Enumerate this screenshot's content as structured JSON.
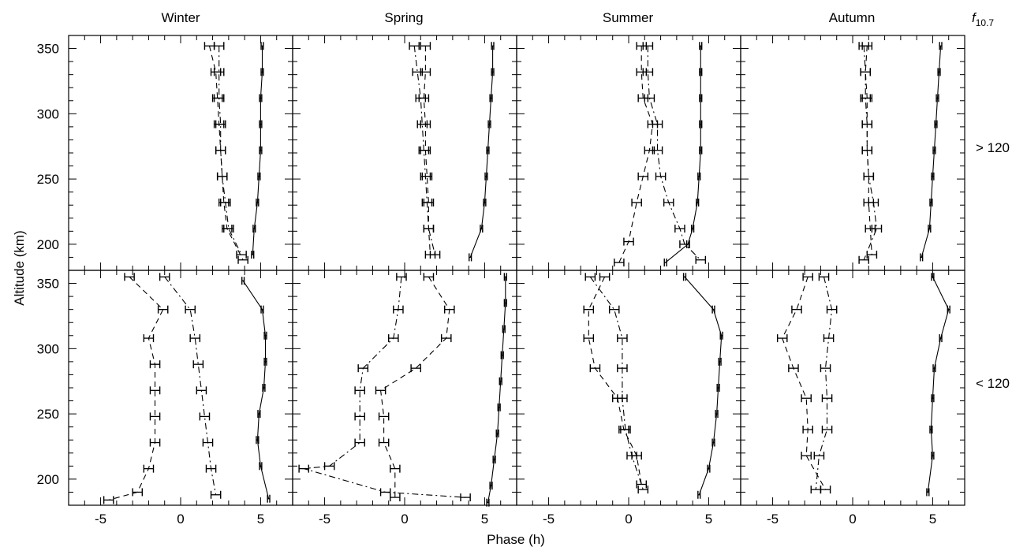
{
  "chart_data": {
    "type": "line",
    "seasons": [
      "Winter",
      "Spring",
      "Summer",
      "Autumn"
    ],
    "row_header": "f10.7",
    "row_labels": [
      "> 120",
      "< 120"
    ],
    "xlabel": "Phase (h)",
    "ylabel": "Altitude (km)",
    "xlim": [
      -7,
      7
    ],
    "ylim": [
      180,
      360
    ],
    "x_ticks": [
      -5,
      0,
      5
    ],
    "y_ticks": [
      200,
      250,
      300,
      350
    ],
    "line_styles": [
      "solid",
      "dashed",
      "dashdot"
    ],
    "panels": [
      {
        "row": 0,
        "col": 0,
        "season": "Winter",
        "f107": "> 120",
        "series": [
          {
            "style": "solid",
            "points": [
              [
                5.1,
                352
              ],
              [
                5.1,
                332
              ],
              [
                5.0,
                312
              ],
              [
                5.0,
                292
              ],
              [
                5.0,
                272
              ],
              [
                4.9,
                252
              ],
              [
                4.8,
                232
              ],
              [
                4.6,
                212
              ],
              [
                4.5,
                192
              ]
            ]
          },
          {
            "style": "dashed",
            "points": [
              [
                1.8,
                352
              ],
              [
                2.2,
                332
              ],
              [
                2.3,
                312
              ],
              [
                2.4,
                292
              ],
              [
                2.5,
                272
              ],
              [
                2.6,
                252
              ],
              [
                2.7,
                232
              ],
              [
                2.9,
                212
              ],
              [
                3.9,
                188
              ]
            ]
          },
          {
            "style": "dashdot",
            "points": [
              [
                2.4,
                352
              ],
              [
                2.4,
                332
              ],
              [
                2.4,
                312
              ],
              [
                2.5,
                292
              ],
              [
                2.5,
                272
              ],
              [
                2.6,
                252
              ],
              [
                2.8,
                232
              ],
              [
                3.0,
                212
              ],
              [
                3.8,
                192
              ]
            ]
          }
        ]
      },
      {
        "row": 0,
        "col": 1,
        "season": "Spring",
        "f107": "> 120",
        "series": [
          {
            "style": "solid",
            "points": [
              [
                5.5,
                352
              ],
              [
                5.5,
                332
              ],
              [
                5.4,
                312
              ],
              [
                5.3,
                292
              ],
              [
                5.2,
                272
              ],
              [
                5.1,
                252
              ],
              [
                5.0,
                232
              ],
              [
                4.8,
                212
              ],
              [
                4.1,
                190
              ]
            ]
          },
          {
            "style": "dashed",
            "points": [
              [
                1.3,
                352
              ],
              [
                1.3,
                332
              ],
              [
                1.2,
                312
              ],
              [
                1.3,
                292
              ],
              [
                1.3,
                272
              ],
              [
                1.4,
                252
              ],
              [
                1.5,
                232
              ],
              [
                1.5,
                212
              ],
              [
                1.6,
                192
              ]
            ]
          },
          {
            "style": "dashdot",
            "points": [
              [
                0.6,
                352
              ],
              [
                0.8,
                332
              ],
              [
                1.0,
                312
              ],
              [
                1.1,
                292
              ],
              [
                1.2,
                272
              ],
              [
                1.3,
                252
              ],
              [
                1.4,
                232
              ],
              [
                1.5,
                212
              ],
              [
                1.9,
                192
              ]
            ]
          }
        ]
      },
      {
        "row": 0,
        "col": 2,
        "season": "Summer",
        "f107": "> 120",
        "series": [
          {
            "style": "solid",
            "points": [
              [
                4.5,
                352
              ],
              [
                4.5,
                332
              ],
              [
                4.5,
                312
              ],
              [
                4.5,
                292
              ],
              [
                4.5,
                272
              ],
              [
                4.4,
                252
              ],
              [
                4.3,
                232
              ],
              [
                4.0,
                212
              ],
              [
                3.7,
                200
              ],
              [
                2.3,
                186
              ]
            ]
          },
          {
            "style": "dashed",
            "points": [
              [
                0.8,
                352
              ],
              [
                0.8,
                332
              ],
              [
                0.9,
                312
              ],
              [
                1.5,
                292
              ],
              [
                1.3,
                272
              ],
              [
                0.9,
                252
              ],
              [
                0.5,
                232
              ],
              [
                0.0,
                202
              ],
              [
                -0.6,
                186
              ]
            ]
          },
          {
            "style": "dashdot",
            "points": [
              [
                1.2,
                352
              ],
              [
                1.2,
                332
              ],
              [
                1.3,
                312
              ],
              [
                1.8,
                292
              ],
              [
                1.8,
                272
              ],
              [
                2.0,
                252
              ],
              [
                2.5,
                232
              ],
              [
                3.2,
                212
              ],
              [
                3.5,
                200
              ],
              [
                4.5,
                188
              ]
            ]
          }
        ]
      },
      {
        "row": 0,
        "col": 3,
        "season": "Autumn",
        "f107": "> 120",
        "series": [
          {
            "style": "solid",
            "points": [
              [
                5.5,
                352
              ],
              [
                5.4,
                332
              ],
              [
                5.3,
                312
              ],
              [
                5.2,
                292
              ],
              [
                5.1,
                272
              ],
              [
                5.0,
                252
              ],
              [
                4.9,
                232
              ],
              [
                4.8,
                212
              ],
              [
                4.3,
                190
              ]
            ]
          },
          {
            "style": "dashed",
            "points": [
              [
                0.9,
                352
              ],
              [
                0.8,
                332
              ],
              [
                0.9,
                312
              ],
              [
                0.9,
                292
              ],
              [
                0.9,
                272
              ],
              [
                1.0,
                252
              ],
              [
                1.0,
                232
              ],
              [
                1.1,
                212
              ],
              [
                1.2,
                192
              ]
            ]
          },
          {
            "style": "dashdot",
            "points": [
              [
                0.7,
                352
              ],
              [
                0.8,
                332
              ],
              [
                0.8,
                312
              ],
              [
                0.9,
                292
              ],
              [
                0.9,
                272
              ],
              [
                1.0,
                252
              ],
              [
                1.3,
                232
              ],
              [
                1.5,
                212
              ],
              [
                0.7,
                188
              ]
            ]
          }
        ]
      },
      {
        "row": 1,
        "col": 0,
        "season": "Winter",
        "f107": "< 120",
        "series": [
          {
            "style": "solid",
            "points": [
              [
                3.9,
                352
              ],
              [
                5.1,
                330
              ],
              [
                5.3,
                310
              ],
              [
                5.3,
                290
              ],
              [
                5.2,
                270
              ],
              [
                4.9,
                250
              ],
              [
                4.8,
                230
              ],
              [
                5.0,
                210
              ],
              [
                5.5,
                185
              ]
            ]
          },
          {
            "style": "dashed",
            "points": [
              [
                -3.2,
                355
              ],
              [
                -1.1,
                330
              ],
              [
                -2.0,
                308
              ],
              [
                -1.6,
                288
              ],
              [
                -1.6,
                268
              ],
              [
                -1.6,
                248
              ],
              [
                -1.6,
                228
              ],
              [
                -2.0,
                208
              ],
              [
                -2.7,
                190
              ],
              [
                -4.5,
                184
              ]
            ]
          },
          {
            "style": "dashdot",
            "points": [
              [
                -1.0,
                355
              ],
              [
                0.6,
                330
              ],
              [
                0.9,
                308
              ],
              [
                1.1,
                288
              ],
              [
                1.3,
                268
              ],
              [
                1.5,
                248
              ],
              [
                1.7,
                228
              ],
              [
                1.9,
                208
              ],
              [
                2.2,
                188
              ]
            ]
          }
        ]
      },
      {
        "row": 1,
        "col": 1,
        "season": "Spring",
        "f107": "< 120",
        "series": [
          {
            "style": "solid",
            "points": [
              [
                6.3,
                355
              ],
              [
                6.3,
                335
              ],
              [
                6.2,
                315
              ],
              [
                6.1,
                295
              ],
              [
                6.0,
                275
              ],
              [
                5.9,
                255
              ],
              [
                5.8,
                235
              ],
              [
                5.6,
                215
              ],
              [
                5.4,
                195
              ],
              [
                5.2,
                182
              ]
            ]
          },
          {
            "style": "dashed",
            "points": [
              [
                1.5,
                355
              ],
              [
                2.8,
                330
              ],
              [
                2.6,
                308
              ],
              [
                0.7,
                285
              ],
              [
                -1.5,
                268
              ],
              [
                -1.3,
                248
              ],
              [
                -1.3,
                228
              ],
              [
                -0.6,
                208
              ],
              [
                -0.6,
                186
              ]
            ]
          },
          {
            "style": "dashdot",
            "points": [
              [
                -0.2,
                355
              ],
              [
                -0.4,
                330
              ],
              [
                -0.7,
                308
              ],
              [
                -2.6,
                285
              ],
              [
                -2.8,
                268
              ],
              [
                -2.8,
                248
              ],
              [
                -2.8,
                228
              ],
              [
                -4.7,
                210
              ],
              [
                -6.3,
                208
              ],
              [
                -1.2,
                190
              ],
              [
                3.8,
                186
              ]
            ]
          }
        ]
      },
      {
        "row": 1,
        "col": 2,
        "season": "Summer",
        "f107": "< 120",
        "series": [
          {
            "style": "solid",
            "points": [
              [
                3.5,
                355
              ],
              [
                5.3,
                330
              ],
              [
                5.8,
                310
              ],
              [
                5.7,
                290
              ],
              [
                5.6,
                270
              ],
              [
                5.5,
                250
              ],
              [
                5.3,
                228
              ],
              [
                5.0,
                208
              ],
              [
                4.4,
                188
              ]
            ]
          },
          {
            "style": "dashed",
            "points": [
              [
                -1.5,
                355
              ],
              [
                -2.5,
                330
              ],
              [
                -2.5,
                308
              ],
              [
                -2.1,
                285
              ],
              [
                -0.7,
                262
              ],
              [
                -0.3,
                238
              ],
              [
                0.5,
                218
              ],
              [
                0.8,
                196
              ]
            ]
          },
          {
            "style": "dashdot",
            "points": [
              [
                -2.4,
                355
              ],
              [
                -0.9,
                330
              ],
              [
                -0.4,
                308
              ],
              [
                -0.4,
                285
              ],
              [
                -0.4,
                262
              ],
              [
                -0.2,
                238
              ],
              [
                0.2,
                218
              ],
              [
                0.9,
                192
              ]
            ]
          }
        ]
      },
      {
        "row": 1,
        "col": 3,
        "season": "Autumn",
        "f107": "< 120",
        "series": [
          {
            "style": "solid",
            "points": [
              [
                5.0,
                355
              ],
              [
                6.0,
                330
              ],
              [
                5.5,
                308
              ],
              [
                5.1,
                285
              ],
              [
                5.0,
                262
              ],
              [
                4.9,
                238
              ],
              [
                5.0,
                218
              ],
              [
                4.7,
                190
              ]
            ]
          },
          {
            "style": "dashed",
            "points": [
              [
                -2.8,
                355
              ],
              [
                -3.5,
                330
              ],
              [
                -4.4,
                308
              ],
              [
                -3.7,
                285
              ],
              [
                -2.9,
                262
              ],
              [
                -2.8,
                238
              ],
              [
                -2.9,
                218
              ],
              [
                -1.7,
                192
              ]
            ]
          },
          {
            "style": "dashdot",
            "points": [
              [
                -1.8,
                355
              ],
              [
                -1.3,
                330
              ],
              [
                -1.5,
                308
              ],
              [
                -1.7,
                285
              ],
              [
                -1.6,
                262
              ],
              [
                -1.6,
                238
              ],
              [
                -2.1,
                218
              ],
              [
                -2.3,
                192
              ]
            ]
          }
        ]
      }
    ]
  }
}
